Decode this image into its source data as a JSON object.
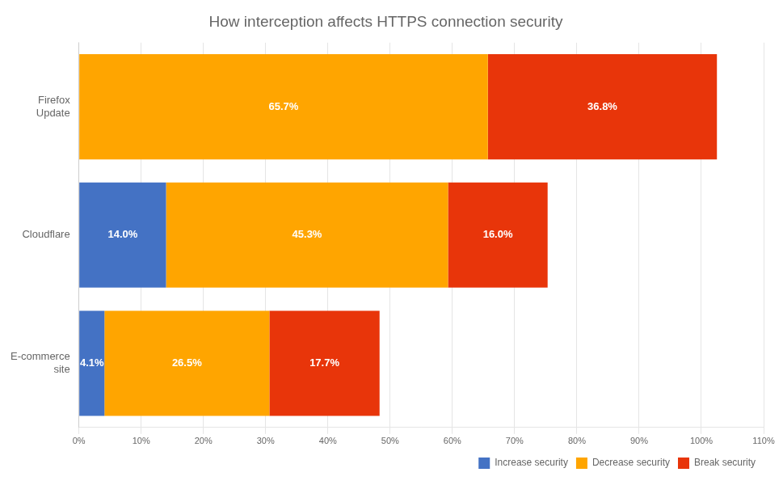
{
  "chart_data": {
    "type": "bar",
    "orientation": "horizontal",
    "stacked": true,
    "title": "How interception affects HTTPS connection security",
    "categories": [
      "E-commerce\nsite",
      "Cloudflare",
      "Firefox\nUpdate"
    ],
    "series": [
      {
        "name": "Increase security",
        "color": "#4472C4",
        "values": [
          4.1,
          14.0,
          0.0
        ],
        "value_labels": [
          "4.1%",
          "14.0%",
          null
        ]
      },
      {
        "name": "Decrease security",
        "color": "#FFA500",
        "values": [
          26.5,
          45.3,
          65.7
        ],
        "value_labels": [
          "26.5%",
          "45.3%",
          "65.7%"
        ]
      },
      {
        "name": "Break security",
        "color": "#E8350A",
        "values": [
          17.7,
          16.0,
          36.8
        ],
        "value_labels": [
          "17.7%",
          "16.0%",
          "36.8%"
        ]
      }
    ],
    "xlim": [
      0,
      110
    ],
    "xticks": [
      {
        "value": 0,
        "label": "0%"
      },
      {
        "value": 10,
        "label": "10%"
      },
      {
        "value": 20,
        "label": "20%"
      },
      {
        "value": 30,
        "label": "30%"
      },
      {
        "value": 40,
        "label": "40%"
      },
      {
        "value": 50,
        "label": "50%"
      },
      {
        "value": 60,
        "label": "60%"
      },
      {
        "value": 70,
        "label": "70%"
      },
      {
        "value": 80,
        "label": "80%"
      },
      {
        "value": 90,
        "label": "90%"
      },
      {
        "value": 100,
        "label": "100%"
      },
      {
        "value": 110,
        "label": "110%"
      }
    ],
    "grid": true,
    "legend": "lower right",
    "data_labels": true
  }
}
